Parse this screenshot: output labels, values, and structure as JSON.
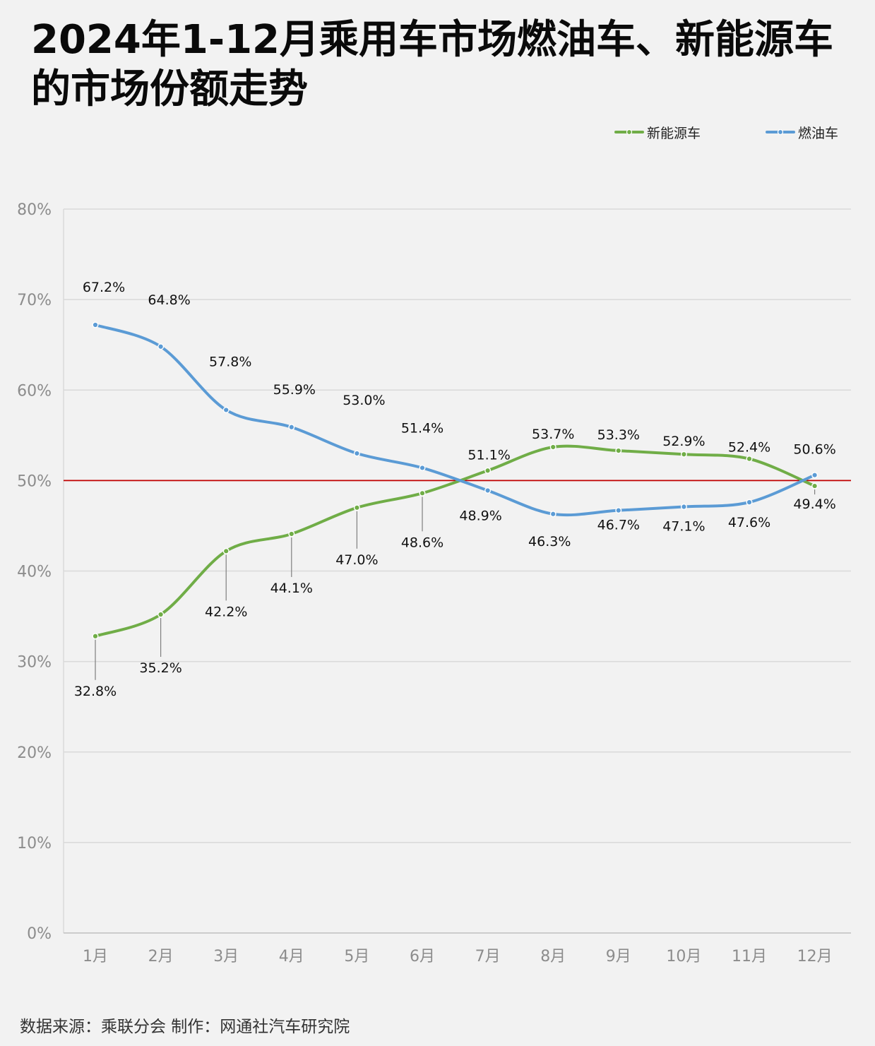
{
  "title": "2024年1-12月乘用车市场燃油车、新能源车的市场份额走势",
  "source_note": "数据来源：乘联分会  制作：网通社汽车研究院",
  "colors": {
    "background": "#f2f2f2",
    "gridline": "#d9d9d9",
    "nev": "#70ad47",
    "ice": "#5b9bd5",
    "reference_line": "#c00000",
    "tick_text": "#8c8c8c"
  },
  "chart_data": {
    "type": "line",
    "title": "2024年1-12月乘用车市场燃油车、新能源车的市场份额走势",
    "xlabel": "",
    "ylabel": "",
    "categories": [
      "1月",
      "2月",
      "3月",
      "4月",
      "5月",
      "6月",
      "7月",
      "8月",
      "9月",
      "10月",
      "11月",
      "12月"
    ],
    "ylim": [
      0,
      80
    ],
    "yticks": [
      0,
      10,
      20,
      30,
      40,
      50,
      60,
      70,
      80
    ],
    "ytick_labels": [
      "0%",
      "10%",
      "20%",
      "30%",
      "40%",
      "50%",
      "60%",
      "70%",
      "80%"
    ],
    "grid": true,
    "smooth": true,
    "legend_position": "top-right",
    "reference_line": {
      "y": 50
    },
    "series": [
      {
        "name": "新能源车",
        "color": "#70ad47",
        "values": [
          32.8,
          35.2,
          42.2,
          44.1,
          47.0,
          48.6,
          51.1,
          53.7,
          53.3,
          52.9,
          52.4,
          49.4
        ],
        "labels": [
          "32.8%",
          "35.2%",
          "42.2%",
          "44.1%",
          "47.0%",
          "48.6%",
          "51.1%",
          "53.7%",
          "53.3%",
          "52.9%",
          "52.4%",
          "49.4%"
        ]
      },
      {
        "name": "燃油车",
        "color": "#5b9bd5",
        "values": [
          67.2,
          64.8,
          57.8,
          55.9,
          53.0,
          51.4,
          48.9,
          46.3,
          46.7,
          47.1,
          47.6,
          50.6
        ],
        "labels": [
          "67.2%",
          "64.8%",
          "57.8%",
          "55.9%",
          "53.0%",
          "51.4%",
          "48.9%",
          "46.3%",
          "46.7%",
          "47.1%",
          "47.6%",
          "50.6%"
        ]
      }
    ]
  }
}
